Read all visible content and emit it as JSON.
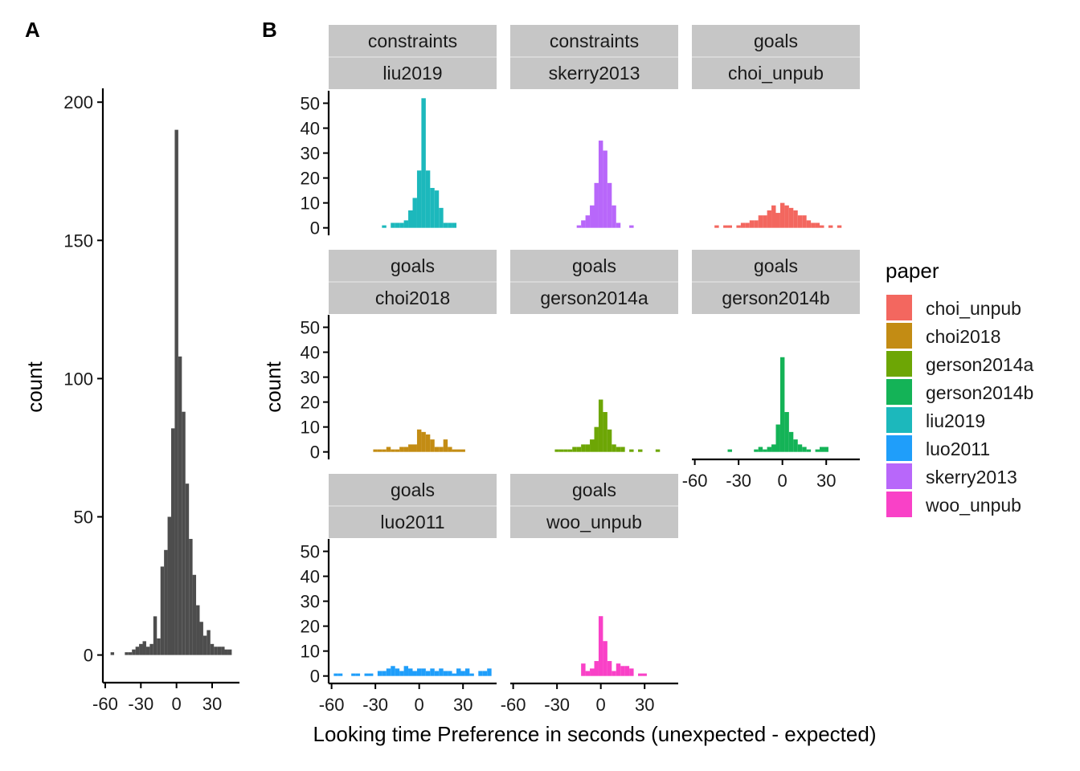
{
  "chart_data": [
    {
      "panel_label": "A",
      "type": "bar",
      "xlabel": "",
      "ylabel": "count",
      "xlim": [
        -62,
        53
      ],
      "ylim": [
        -10,
        205
      ],
      "xticks": [
        -60,
        -30,
        0,
        30
      ],
      "xtick_labels": [
        "-60",
        "-30",
        "0",
        "30"
      ],
      "yticks": [
        0,
        50,
        100,
        150,
        200
      ],
      "ytick_labels": [
        "0",
        "50",
        "100",
        "150",
        "200"
      ],
      "bin_width": 3,
      "color": "#4d4d4d",
      "x": [
        -54,
        -42,
        -39,
        -36,
        -33,
        -30,
        -27,
        -24,
        -21,
        -18,
        -15,
        -12,
        -9,
        -6,
        -3,
        0,
        3,
        6,
        9,
        12,
        15,
        18,
        21,
        24,
        27,
        30,
        33,
        36,
        39,
        42,
        45
      ],
      "values": [
        1,
        1,
        1,
        2,
        3,
        4,
        5,
        3,
        4,
        14,
        6,
        32,
        38,
        50,
        82,
        190,
        108,
        88,
        62,
        42,
        29,
        18,
        12,
        7,
        9,
        4,
        3,
        3,
        3,
        2,
        2
      ]
    },
    {
      "panel_label": "B",
      "type": "bar",
      "facets": [
        "constraints",
        "goals"
      ],
      "xlabel": "Looking time Preference in seconds (unexpected - expected)",
      "ylabel": "count",
      "xlim": [
        -62,
        53
      ],
      "ylim": [
        -3,
        55
      ],
      "xticks": [
        -60,
        -30,
        0,
        30
      ],
      "xtick_labels": [
        "-60",
        "-30",
        "0",
        "30"
      ],
      "yticks": [
        0,
        10,
        20,
        30,
        40,
        50
      ],
      "ytick_labels": [
        "0",
        "10",
        "20",
        "30",
        "40",
        "50"
      ],
      "bin_width": 3,
      "legend": {
        "title": "paper",
        "position": "right"
      },
      "series": [
        {
          "facet_top": "constraints",
          "name": "liu2019",
          "color": "#1CB8BC",
          "x": [
            -24,
            -18,
            -15,
            -12,
            -9,
            -6,
            -3,
            0,
            3,
            6,
            9,
            12,
            15,
            18,
            21,
            24
          ],
          "values": [
            1,
            2,
            2,
            2,
            3,
            7,
            12,
            23,
            52,
            23,
            16,
            15,
            8,
            2,
            2,
            2
          ]
        },
        {
          "facet_top": "constraints",
          "name": "skerry2013",
          "color": "#B867FA",
          "x": [
            -15,
            -12,
            -9,
            -6,
            -3,
            0,
            3,
            6,
            9,
            12,
            21
          ],
          "values": [
            1,
            3,
            5,
            9,
            18,
            35,
            31,
            18,
            9,
            2,
            1
          ]
        },
        {
          "facet_top": "goals",
          "name": "choi_unpub",
          "color": "#F3675F",
          "x": [
            -45,
            -39,
            -36,
            -30,
            -27,
            -24,
            -21,
            -18,
            -15,
            -12,
            -9,
            -6,
            -3,
            0,
            3,
            6,
            9,
            12,
            15,
            18,
            21,
            24,
            27,
            33,
            39
          ],
          "values": [
            1,
            1,
            1,
            1,
            2,
            2,
            3,
            3,
            5,
            5,
            7,
            9,
            6,
            10,
            9,
            8,
            7,
            5,
            5,
            3,
            2,
            2,
            1,
            1,
            1
          ]
        },
        {
          "facet_top": "goals",
          "name": "choi2018",
          "color": "#C38C14",
          "x": [
            -30,
            -27,
            -24,
            -21,
            -18,
            -15,
            -12,
            -9,
            -6,
            -3,
            0,
            3,
            6,
            9,
            12,
            15,
            18,
            21,
            24,
            27,
            30
          ],
          "values": [
            1,
            1,
            1,
            2,
            1,
            1,
            2,
            2,
            3,
            3,
            9,
            8,
            7,
            5,
            2,
            2,
            5,
            2,
            1,
            1,
            1
          ]
        },
        {
          "facet_top": "goals",
          "name": "gerson2014a",
          "color": "#6DA605",
          "x": [
            -30,
            -27,
            -24,
            -21,
            -18,
            -15,
            -12,
            -9,
            -6,
            -3,
            0,
            3,
            6,
            9,
            12,
            15,
            21,
            27,
            39
          ],
          "values": [
            1,
            1,
            1,
            1,
            2,
            2,
            3,
            3,
            5,
            10,
            21,
            16,
            9,
            3,
            2,
            2,
            1,
            1,
            1
          ]
        },
        {
          "facet_top": "goals",
          "name": "gerson2014b",
          "color": "#14B357",
          "x": [
            -36,
            -18,
            -15,
            -12,
            -9,
            -6,
            -3,
            0,
            3,
            6,
            9,
            12,
            15,
            18,
            24,
            27,
            30
          ],
          "values": [
            1,
            1,
            2,
            1,
            2,
            3,
            11,
            38,
            16,
            8,
            5,
            3,
            2,
            1,
            1,
            2,
            2
          ]
        },
        {
          "facet_top": "goals",
          "name": "luo2011",
          "color": "#1F9EFA",
          "x": [
            -57,
            -54,
            -45,
            -42,
            -36,
            -33,
            -27,
            -24,
            -21,
            -18,
            -15,
            -12,
            -9,
            -6,
            -3,
            0,
            3,
            6,
            9,
            12,
            15,
            18,
            21,
            24,
            27,
            30,
            33,
            36,
            42,
            45,
            48
          ],
          "values": [
            1,
            1,
            1,
            1,
            1,
            1,
            2,
            2,
            3,
            4,
            3,
            2,
            4,
            3,
            2,
            3,
            3,
            2,
            3,
            2,
            3,
            2,
            2,
            1,
            3,
            2,
            3,
            1,
            2,
            2,
            3
          ]
        },
        {
          "facet_top": "goals",
          "name": "woo_unpub",
          "color": "#F941C7",
          "x": [
            -12,
            -9,
            -6,
            -3,
            0,
            3,
            6,
            9,
            12,
            15,
            18,
            21,
            27,
            30
          ],
          "values": [
            5,
            2,
            3,
            6,
            24,
            14,
            6,
            2,
            5,
            4,
            4,
            3,
            1,
            1
          ]
        }
      ]
    }
  ]
}
